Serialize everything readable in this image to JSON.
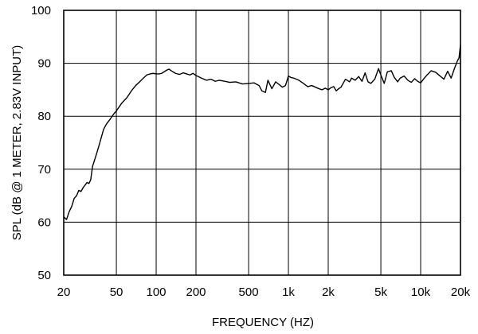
{
  "chart_data": {
    "type": "line",
    "title": "",
    "xlabel": "FREQUENCY  (HZ)",
    "ylabel": "SPL (dB @ 1 METER, 2.83V INPUT)",
    "x_scale": "log",
    "xlim": [
      20,
      20000
    ],
    "ylim": [
      50,
      100
    ],
    "grid": true,
    "x_ticks": [
      {
        "value": 20,
        "label": "20"
      },
      {
        "value": 50,
        "label": "50"
      },
      {
        "value": 100,
        "label": "100"
      },
      {
        "value": 200,
        "label": "200"
      },
      {
        "value": 500,
        "label": "500"
      },
      {
        "value": 1000,
        "label": "1k"
      },
      {
        "value": 2000,
        "label": "2k"
      },
      {
        "value": 5000,
        "label": "5k"
      },
      {
        "value": 10000,
        "label": "10k"
      },
      {
        "value": 20000,
        "label": "20k"
      }
    ],
    "y_ticks": [
      {
        "value": 50,
        "label": "50"
      },
      {
        "value": 60,
        "label": "60"
      },
      {
        "value": 70,
        "label": "70"
      },
      {
        "value": 80,
        "label": "80"
      },
      {
        "value": 90,
        "label": "90"
      },
      {
        "value": 100,
        "label": "100"
      }
    ],
    "series": [
      {
        "x": [
          20,
          21,
          22,
          23,
          24,
          25,
          26,
          27,
          28,
          29,
          30,
          31,
          32,
          33,
          35,
          37,
          40,
          42,
          45,
          48,
          50,
          55,
          60,
          65,
          70,
          75,
          80,
          85,
          90,
          95,
          100,
          105,
          110,
          115,
          120,
          125,
          130,
          140,
          150,
          160,
          170,
          180,
          190,
          200,
          220,
          240,
          260,
          280,
          300,
          330,
          360,
          400,
          450,
          500,
          550,
          600,
          630,
          670,
          700,
          750,
          800,
          850,
          900,
          950,
          1000,
          1050,
          1100,
          1200,
          1300,
          1400,
          1500,
          1600,
          1700,
          1800,
          1900,
          2000,
          2100,
          2200,
          2300,
          2400,
          2500,
          2700,
          2900,
          3000,
          3200,
          3400,
          3600,
          3800,
          4000,
          4200,
          4500,
          4800,
          5000,
          5300,
          5600,
          6000,
          6300,
          6700,
          7000,
          7500,
          8000,
          8500,
          9000,
          9500,
          10000,
          10500,
          11000,
          12000,
          13000,
          14000,
          15000,
          16000,
          17000,
          18000,
          19000,
          19500,
          20000
        ],
        "y": [
          61.0,
          60.5,
          62.0,
          63.0,
          64.5,
          65.0,
          66.0,
          65.8,
          66.5,
          67.0,
          67.5,
          67.3,
          68.0,
          70.5,
          72.5,
          74.5,
          77.5,
          78.5,
          79.5,
          80.5,
          81.0,
          82.5,
          83.5,
          84.8,
          85.8,
          86.5,
          87.2,
          87.8,
          88.0,
          88.1,
          88.0,
          88.0,
          88.1,
          88.4,
          88.7,
          88.9,
          88.6,
          88.1,
          87.9,
          88.2,
          88.0,
          87.8,
          88.1,
          87.7,
          87.2,
          86.8,
          87.0,
          86.6,
          86.8,
          86.6,
          86.4,
          86.5,
          86.1,
          86.2,
          86.3,
          85.8,
          84.8,
          84.5,
          86.8,
          85.2,
          86.5,
          86.0,
          85.5,
          85.8,
          87.6,
          87.3,
          87.2,
          86.8,
          86.2,
          85.6,
          85.8,
          85.5,
          85.2,
          85.0,
          85.3,
          85.0,
          85.4,
          85.6,
          84.8,
          85.2,
          85.5,
          87.0,
          86.5,
          87.2,
          86.8,
          87.5,
          86.6,
          88.2,
          86.5,
          86.2,
          87.0,
          89.0,
          87.8,
          86.2,
          88.4,
          88.6,
          87.4,
          86.5,
          87.2,
          87.6,
          86.8,
          86.4,
          87.1,
          86.6,
          86.3,
          87.0,
          87.6,
          88.6,
          88.3,
          87.6,
          87.0,
          88.5,
          87.2,
          89.0,
          90.5,
          91.0,
          93.5
        ]
      }
    ]
  }
}
